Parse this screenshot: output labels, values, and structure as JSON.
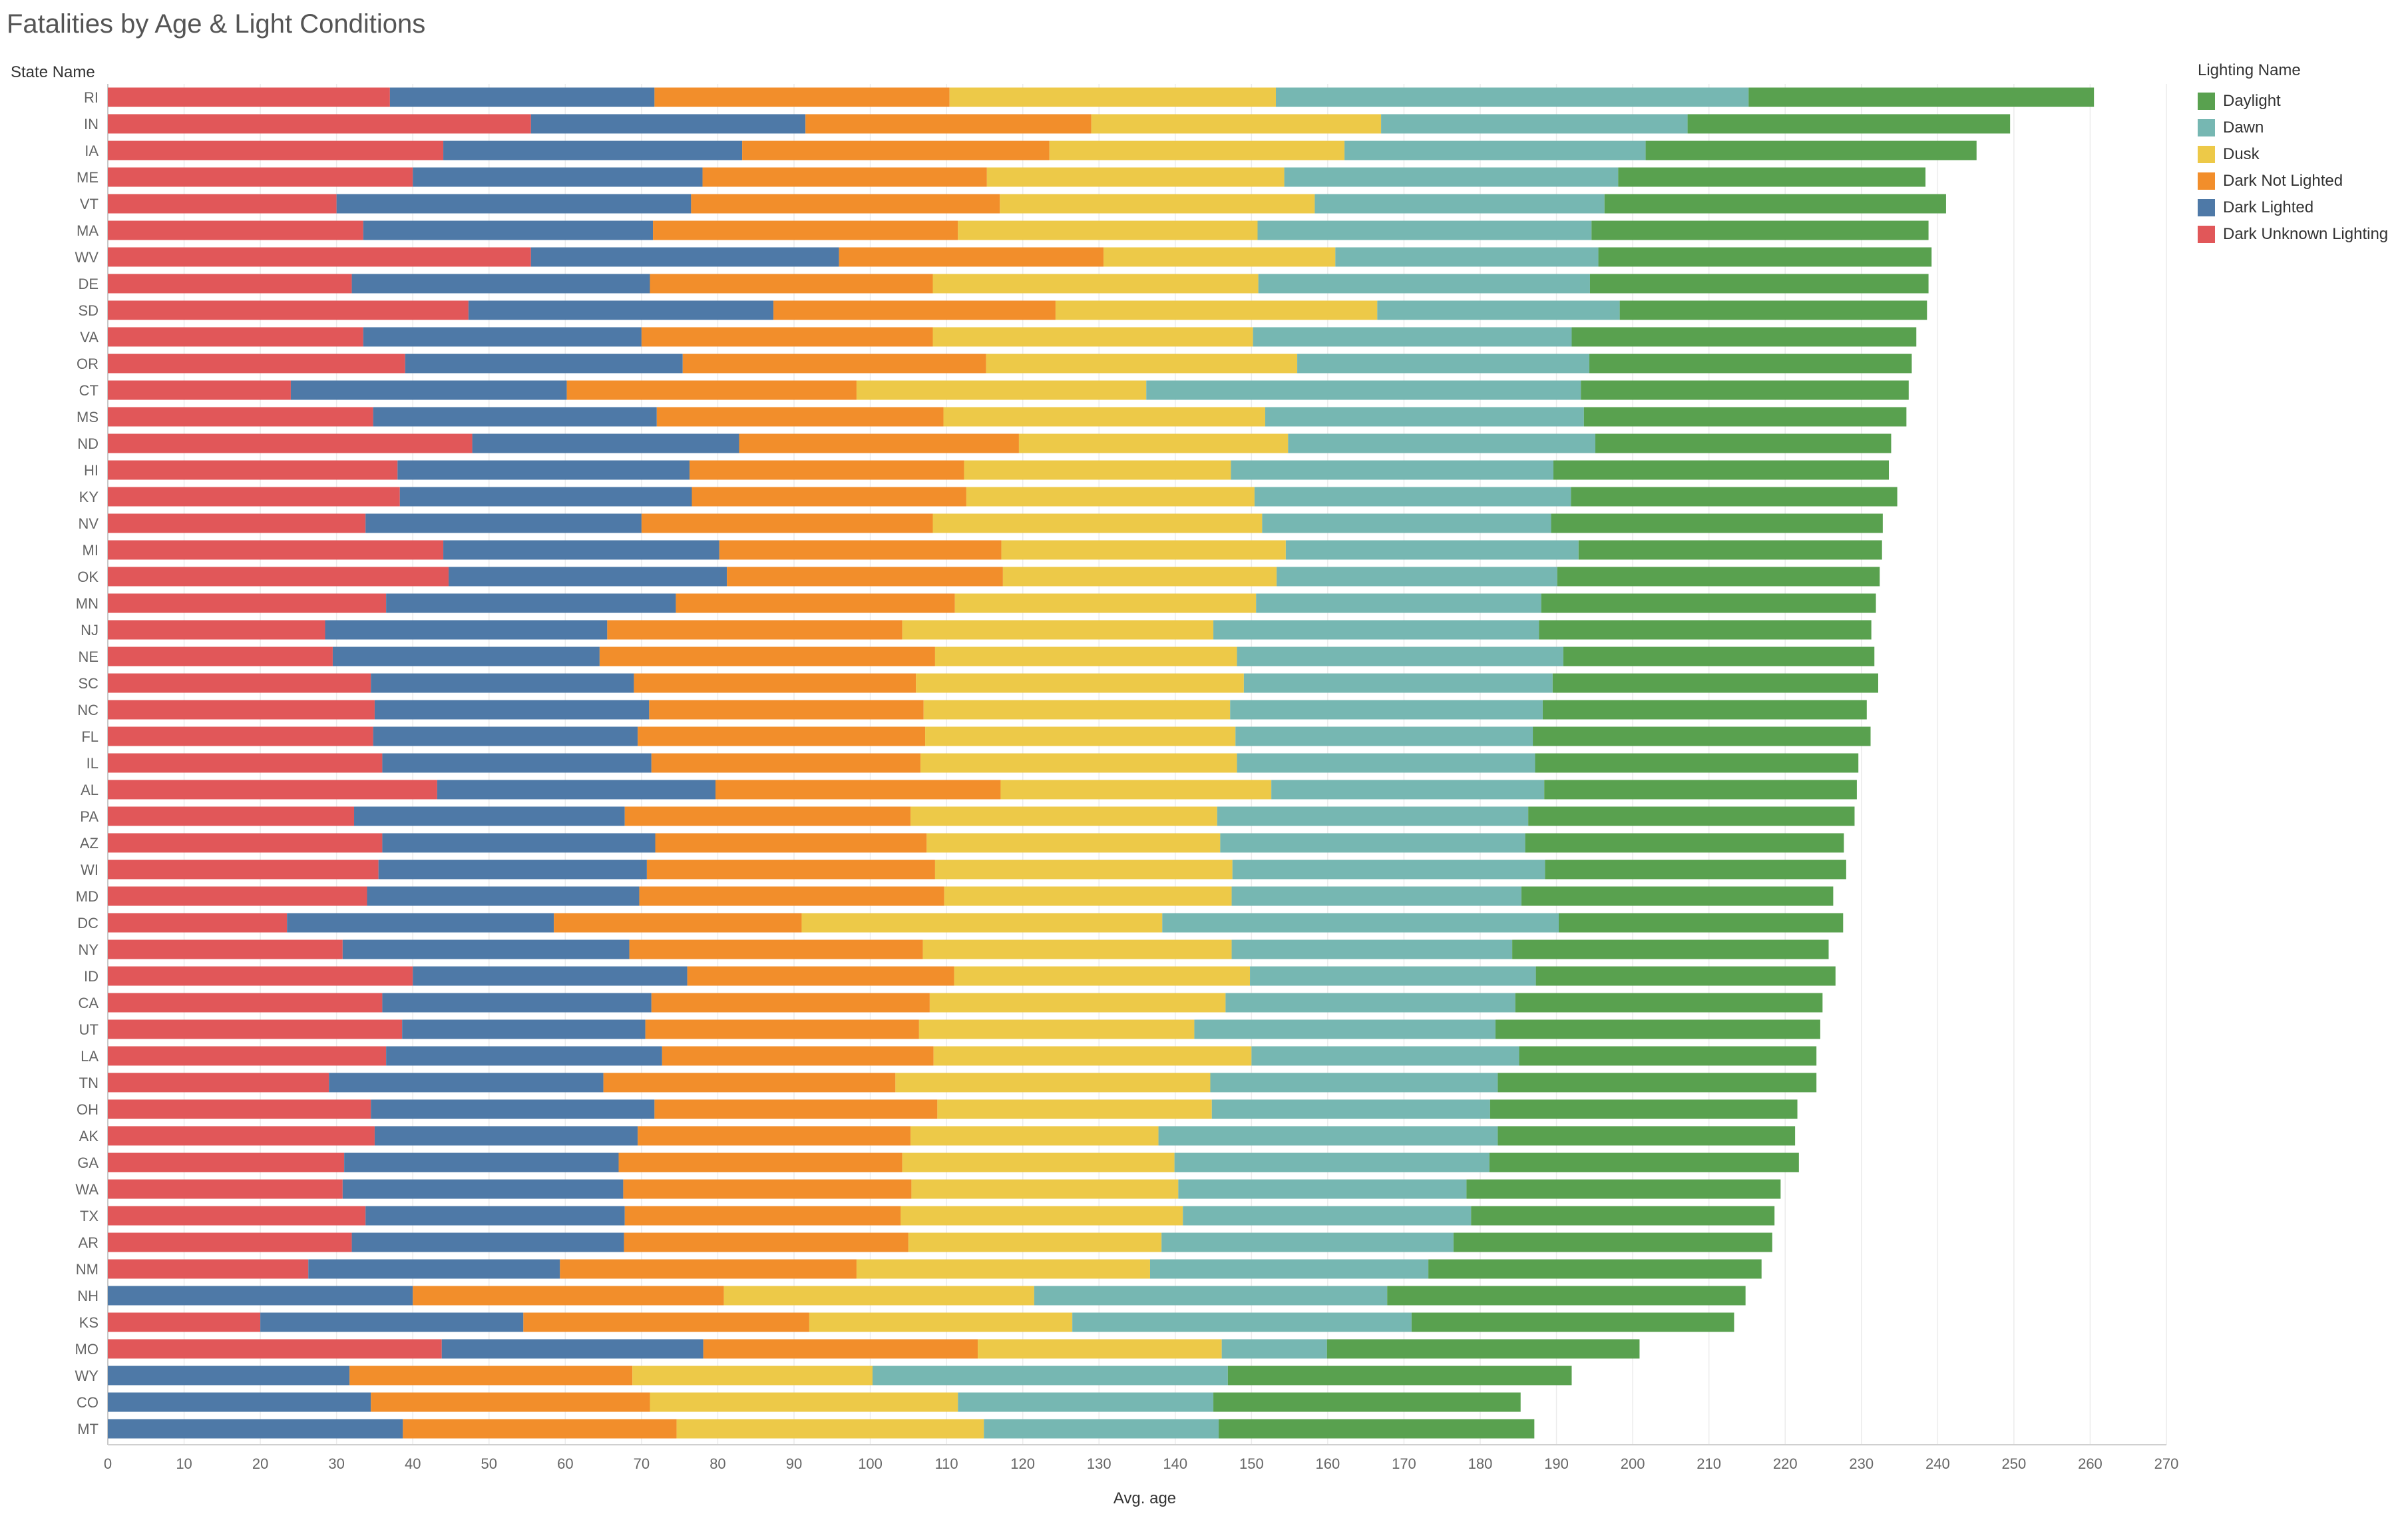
{
  "chart_data": {
    "type": "bar",
    "orientation": "horizontal",
    "stacked": true,
    "title": "Fatalities by Age & Light Conditions",
    "ylabel": "State Name",
    "xlabel": "Avg. age",
    "xlim": [
      0,
      270
    ],
    "xticks": [
      0,
      10,
      20,
      30,
      40,
      50,
      60,
      70,
      80,
      90,
      100,
      110,
      120,
      130,
      140,
      150,
      160,
      170,
      180,
      190,
      200,
      210,
      220,
      230,
      240,
      250,
      260,
      270
    ],
    "grid": "vertical",
    "legend": {
      "title": "Lighting Name",
      "placement": "right-top"
    },
    "legend_order": [
      "Daylight",
      "Dawn",
      "Dusk",
      "Dark Not Lighted",
      "Dark Lighted",
      "Dark Unknown Lighting"
    ],
    "categories": [
      "RI",
      "IN",
      "IA",
      "ME",
      "VT",
      "MA",
      "WV",
      "DE",
      "SD",
      "VA",
      "OR",
      "CT",
      "MS",
      "ND",
      "HI",
      "KY",
      "NV",
      "MI",
      "OK",
      "MN",
      "NJ",
      "NE",
      "SC",
      "NC",
      "FL",
      "IL",
      "AL",
      "PA",
      "AZ",
      "WI",
      "MD",
      "DC",
      "NY",
      "ID",
      "CA",
      "UT",
      "LA",
      "TN",
      "OH",
      "AK",
      "GA",
      "WA",
      "TX",
      "AR",
      "NM",
      "NH",
      "KS",
      "MO",
      "WY",
      "CO",
      "MT"
    ],
    "series": [
      {
        "name": "Dark Unknown Lighting",
        "color": "#e15759",
        "values": [
          37,
          55.5,
          44,
          40,
          30,
          33.5,
          55.5,
          32,
          47.3,
          33.5,
          39,
          24,
          34.8,
          47.8,
          38,
          38.3,
          33.8,
          44,
          44.7,
          36.5,
          28.5,
          29.5,
          34.5,
          35,
          34.8,
          36,
          43.2,
          32.3,
          36,
          35.5,
          34,
          23.5,
          30.8,
          40,
          36,
          38.6,
          36.5,
          29,
          34.5,
          35,
          31,
          30.8,
          33.8,
          32,
          26.3,
          0,
          20,
          43.8,
          0,
          0,
          0
        ]
      },
      {
        "name": "Dark Lighted",
        "color": "#4e79a7",
        "values": [
          34.7,
          36,
          39.2,
          38,
          46.5,
          38,
          40.4,
          39.1,
          40,
          36.5,
          36.4,
          36.2,
          37.2,
          35,
          38.3,
          38.3,
          36.2,
          36.2,
          36.5,
          38,
          37,
          35,
          34.5,
          36,
          34.7,
          35.3,
          36.5,
          35.5,
          35.8,
          35.2,
          35.7,
          35,
          37.6,
          36,
          35.3,
          31.9,
          36.2,
          36,
          37.2,
          34.5,
          36,
          36.8,
          34,
          35.7,
          33,
          40,
          34.5,
          34.3,
          31.7,
          34.5,
          38.7
        ]
      },
      {
        "name": "Dark Not Lighted",
        "color": "#f28e2b",
        "values": [
          38.7,
          37.5,
          40.3,
          37.3,
          40.5,
          40,
          34.7,
          37.1,
          37,
          38.2,
          39.8,
          38,
          37.6,
          36.7,
          36,
          36,
          38.2,
          37,
          36.2,
          36.6,
          38.7,
          44,
          37,
          36,
          37.7,
          35.3,
          37.4,
          37.5,
          35.6,
          37.8,
          40,
          32.5,
          38.5,
          35,
          36.5,
          35.9,
          35.6,
          38.3,
          37.1,
          35.8,
          37.2,
          37.8,
          36.2,
          37.3,
          38.9,
          40.8,
          37.5,
          36,
          37.1,
          36.6,
          35.9
        ]
      },
      {
        "name": "Dusk",
        "color": "#edc948",
        "values": [
          42.8,
          38,
          38.7,
          39,
          41.3,
          39.3,
          30.4,
          42.7,
          42.2,
          42,
          40.8,
          38,
          42.2,
          35.3,
          35,
          37.8,
          43.2,
          37.3,
          35.9,
          39.5,
          40.8,
          39.6,
          43,
          40.2,
          40.7,
          41.5,
          35.5,
          40.2,
          38.5,
          39,
          37.7,
          47.3,
          40.5,
          38.8,
          38.8,
          36.1,
          41.7,
          41.3,
          36,
          32.5,
          35.7,
          35,
          37,
          33.2,
          38.5,
          40.7,
          34.5,
          32,
          31.5,
          40.4,
          40.3
        ]
      },
      {
        "name": "Dawn",
        "color": "#76b7b2",
        "values": [
          62,
          40.2,
          39.5,
          43.8,
          38,
          43.8,
          34.5,
          43.5,
          31.8,
          41.8,
          38.3,
          57,
          41.8,
          40.3,
          42.3,
          41.5,
          37.9,
          38.4,
          36.8,
          37.4,
          42.7,
          42.8,
          40.5,
          41,
          39,
          39.1,
          35.8,
          40.8,
          40,
          41,
          38,
          52,
          36.8,
          37.5,
          38,
          39.5,
          35.1,
          37.7,
          36.5,
          44.5,
          41.3,
          37.8,
          37.8,
          38.3,
          36.5,
          46.3,
          44.5,
          13.8,
          46.6,
          33.5,
          30.8
        ]
      },
      {
        "name": "Daylight",
        "color": "#59a14f",
        "values": [
          45.3,
          42.3,
          43.4,
          40.3,
          44.8,
          44.2,
          43.7,
          44.4,
          40.3,
          45.2,
          42.3,
          43,
          42.3,
          38.8,
          44,
          42.8,
          43.5,
          39.8,
          42.3,
          43.9,
          43.6,
          40.8,
          42.7,
          42.5,
          44.3,
          42.4,
          41,
          42.8,
          41.8,
          39.5,
          40.9,
          37.3,
          41.5,
          39.3,
          40.3,
          42.6,
          39,
          41.8,
          40.3,
          39,
          40.6,
          41.2,
          39.8,
          41.8,
          43.7,
          47,
          42.3,
          41,
          45.1,
          40.3,
          41.4
        ]
      }
    ]
  }
}
